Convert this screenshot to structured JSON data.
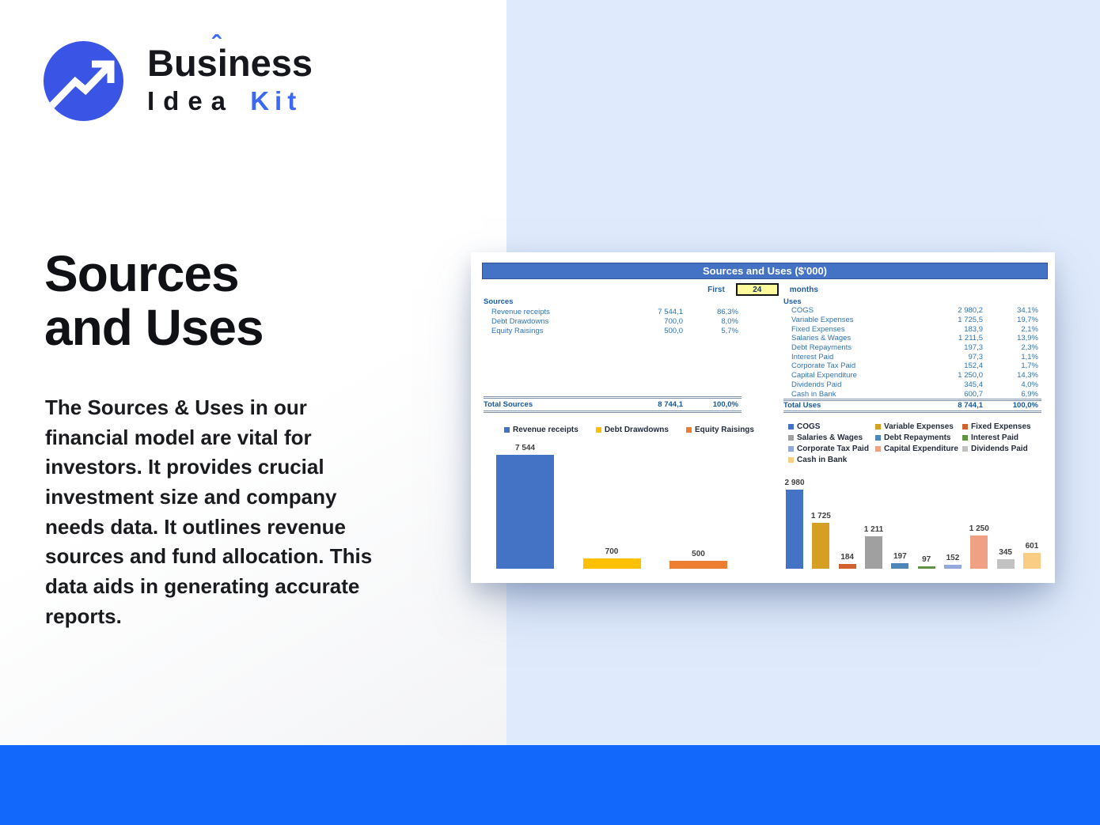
{
  "logo": {
    "brand_pre": "Bus",
    "brand_i": "i",
    "brand_caret": "ˆ",
    "brand_post": "ness",
    "brand_line2": "Idea",
    "brand_line2_accent": "Kit"
  },
  "hero": {
    "title_line1": "Sources",
    "title_line2": "and Uses",
    "paragraph": "The Sources & Uses in our financial model are vital for investors. It provides crucial investment size and company needs data. It outlines revenue sources and fund allocation. This data aids in generating accurate reports."
  },
  "report": {
    "title": "Sources and Uses ($'000)",
    "period_prefix": "First",
    "period_value": "24",
    "period_suffix": "months",
    "sources": {
      "header": "Sources",
      "rows": [
        {
          "label": "Revenue receipts",
          "value": "7 544,1",
          "pct": "86,3%"
        },
        {
          "label": "Debt Drawdowns",
          "value": "700,0",
          "pct": "8,0%"
        },
        {
          "label": "Equity Raisings",
          "value": "500,0",
          "pct": "5,7%"
        }
      ],
      "total": {
        "label": "Total Sources",
        "value": "8 744,1",
        "pct": "100,0%"
      }
    },
    "uses": {
      "header": "Uses",
      "rows": [
        {
          "label": "COGS",
          "value": "2 980,2",
          "pct": "34,1%"
        },
        {
          "label": "Variable Expenses",
          "value": "1 725,5",
          "pct": "19,7%"
        },
        {
          "label": "Fixed Expenses",
          "value": "183,9",
          "pct": "2,1%"
        },
        {
          "label": "Salaries & Wages",
          "value": "1 211,5",
          "pct": "13,9%"
        },
        {
          "label": "Debt Repayments",
          "value": "197,3",
          "pct": "2,3%"
        },
        {
          "label": "Interest Paid",
          "value": "97,3",
          "pct": "1,1%"
        },
        {
          "label": "Corporate Tax Paid",
          "value": "152,4",
          "pct": "1,7%"
        },
        {
          "label": "Capital Expenditure",
          "value": "1 250,0",
          "pct": "14,3%"
        },
        {
          "label": "Dividends Paid",
          "value": "345,4",
          "pct": "4,0%"
        },
        {
          "label": "Cash in Bank",
          "value": "600,7",
          "pct": "6,9%"
        }
      ],
      "total": {
        "label": "Total Uses",
        "value": "8 744,1",
        "pct": "100,0%"
      }
    }
  },
  "chart_data": [
    {
      "type": "bar",
      "title": "Sources",
      "categories": [
        "Revenue receipts",
        "Debt Drawdowns",
        "Equity Raisings"
      ],
      "values": [
        7544,
        700,
        500
      ],
      "labels": [
        "7 544",
        "700",
        "500"
      ],
      "colors": [
        "#4472C4",
        "#FFC000",
        "#ED7D31"
      ],
      "legend_position": "top",
      "ylim": [
        0,
        7544
      ],
      "grid": false
    },
    {
      "type": "bar",
      "title": "Uses",
      "categories": [
        "COGS",
        "Variable Expenses",
        "Fixed Expenses",
        "Salaries & Wages",
        "Debt Repayments",
        "Interest Paid",
        "Corporate Tax Paid",
        "Capital Expenditure",
        "Dividends Paid",
        "Cash in Bank"
      ],
      "values": [
        2980,
        1725,
        184,
        1211,
        197,
        97,
        152,
        1250,
        345,
        601
      ],
      "labels": [
        "2 980",
        "1 725",
        "184",
        "1 211",
        "197",
        "97",
        "152",
        "1 250",
        "345",
        "601"
      ],
      "colors": [
        "#4472C4",
        "#D5A021",
        "#D2622D",
        "#A0A0A0",
        "#4E86BA",
        "#5C9641",
        "#93A9DC",
        "#F1A183",
        "#C2C2C2",
        "#FACD84"
      ],
      "legend_position": "top",
      "ylim": [
        0,
        2980
      ],
      "grid": false
    }
  ],
  "colors": {
    "footer_blue": "#1168FB",
    "panel_blue": "#DFEAFC",
    "logo_circle_blue": "#3A55E5",
    "accent_blue": "#3B68F5",
    "report_header_blue": "#4472C4",
    "table_text_blue": "#2E75B6",
    "period_box_yellow": "#FFFB9D"
  }
}
